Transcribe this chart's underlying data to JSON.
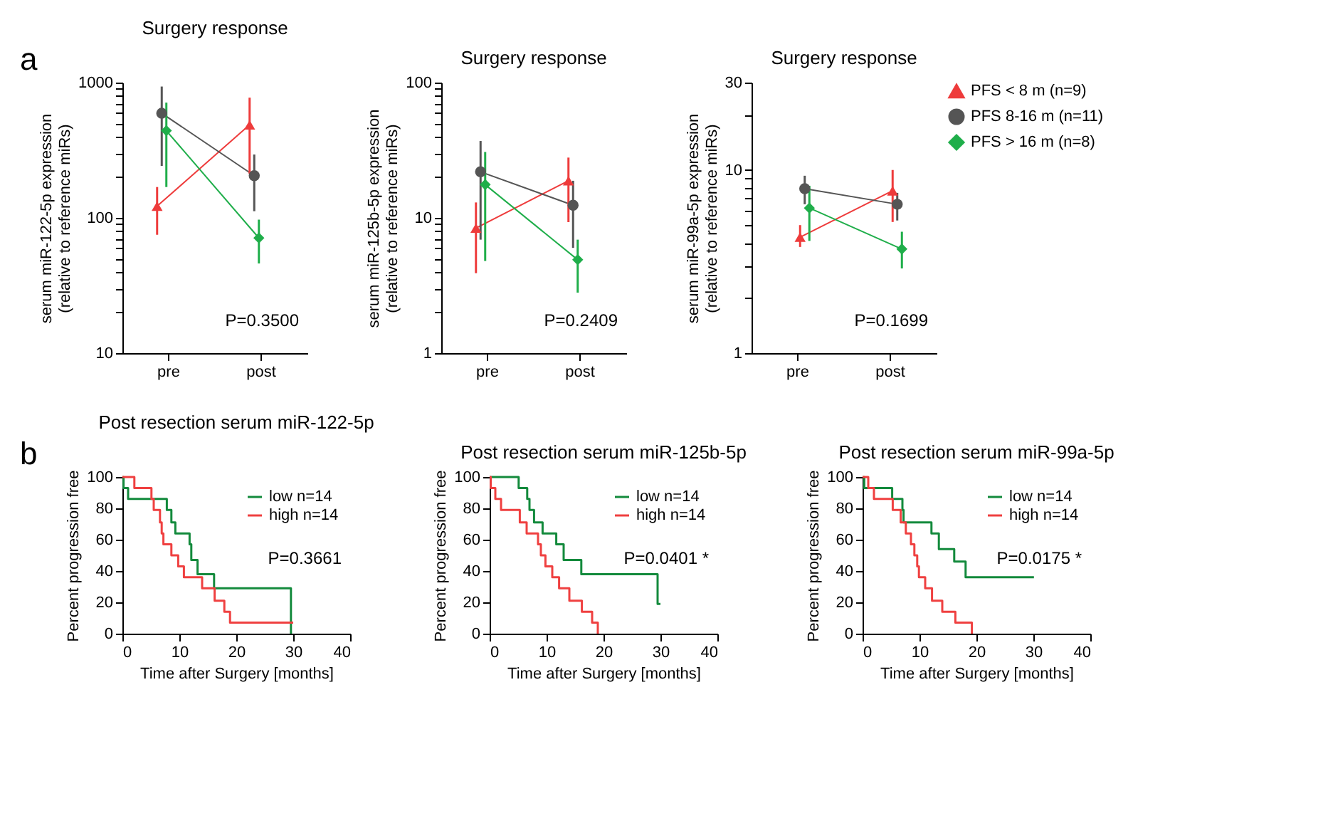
{
  "chart_data": [
    {
      "type": "line",
      "title": "Surgery response",
      "ylabel": "serum miR-122-5p expression\n(relative to reference miRs)",
      "categories": [
        "pre",
        "post"
      ],
      "log": "y",
      "ylim": [
        10,
        1000
      ],
      "yticks": [
        10,
        {
          "value": 20,
          "label": null
        },
        {
          "value": 30,
          "label": null
        },
        {
          "value": 40,
          "label": null
        },
        {
          "value": 50,
          "label": null
        },
        {
          "value": 60,
          "label": null
        },
        {
          "value": 70,
          "label": null
        },
        {
          "value": 80,
          "label": null
        },
        {
          "value": 90,
          "label": null
        },
        100,
        {
          "value": 200,
          "label": null
        },
        {
          "value": 300,
          "label": null
        },
        {
          "value": 400,
          "label": null
        },
        {
          "value": 500,
          "label": null
        },
        {
          "value": 600,
          "label": null
        },
        {
          "value": 700,
          "label": null
        },
        {
          "value": 800,
          "label": null
        },
        {
          "value": 900,
          "label": null
        },
        1000
      ],
      "annotations": [
        "a",
        "P=0.3500"
      ],
      "series": [
        {
          "color": "#ee3b3b",
          "marker": "triangle",
          "values": [
            122,
            487
          ],
          "errors": [
            [
              75,
              169
            ],
            [
              212,
              774
            ]
          ]
        },
        {
          "color": "#555555",
          "marker": "circle",
          "values": [
            593,
            205
          ],
          "errors": [
            [
              242,
              935
            ],
            [
              112,
              294
            ]
          ]
        },
        {
          "color": "#1fae4a",
          "marker": "diamond",
          "values": [
            441,
            71
          ],
          "errors": [
            [
              169,
              711
            ],
            [
              46,
              97
            ]
          ]
        }
      ]
    },
    {
      "type": "line",
      "title": "Surgery response",
      "ylabel": "serum miR-125b-5p expression\n(relative to reference miRs)",
      "categories": [
        "pre",
        "post"
      ],
      "log": "y",
      "ylim": [
        1,
        100
      ],
      "yticks": [
        1,
        {
          "value": 2,
          "label": null
        },
        {
          "value": 3,
          "label": null
        },
        {
          "value": 4,
          "label": null
        },
        {
          "value": 5,
          "label": null
        },
        {
          "value": 6,
          "label": null
        },
        {
          "value": 7,
          "label": null
        },
        {
          "value": 8,
          "label": null
        },
        {
          "value": 9,
          "label": null
        },
        10,
        {
          "value": 20,
          "label": null
        },
        {
          "value": 30,
          "label": null
        },
        {
          "value": 40,
          "label": null
        },
        {
          "value": 50,
          "label": null
        },
        {
          "value": 60,
          "label": null
        },
        {
          "value": 70,
          "label": null
        },
        {
          "value": 80,
          "label": null
        },
        {
          "value": 90,
          "label": null
        },
        100
      ],
      "annotations": [
        "P=0.2409"
      ],
      "series": [
        {
          "color": "#ee3b3b",
          "marker": "triangle",
          "values": [
            8.4,
            18.8
          ],
          "errors": [
            [
              3.9,
              13
            ],
            [
              9.3,
              27.9
            ]
          ]
        },
        {
          "color": "#555555",
          "marker": "circle",
          "values": [
            21.9,
            12.4
          ],
          "errors": [
            [
              6.9,
              37
            ],
            [
              6.0,
              18.8
            ]
          ]
        },
        {
          "color": "#1fae4a",
          "marker": "diamond",
          "values": [
            17.6,
            4.9
          ],
          "errors": [
            [
              4.8,
              30.7
            ],
            [
              2.8,
              6.9
            ]
          ]
        }
      ]
    },
    {
      "type": "line",
      "title": "Surgery response",
      "ylabel": "serum miR-99a-5p expression\n(relative to reference miRs)",
      "categories": [
        "pre",
        "post"
      ],
      "log": "y",
      "ylim": [
        1,
        30
      ],
      "yticks": [
        1,
        {
          "value": 2,
          "label": null
        },
        {
          "value": 3,
          "label": null
        },
        {
          "value": 4,
          "label": null
        },
        {
          "value": 5,
          "label": null
        },
        {
          "value": 6,
          "label": null
        },
        {
          "value": 7,
          "label": null
        },
        {
          "value": 8,
          "label": null
        },
        {
          "value": 9,
          "label": null
        },
        10,
        {
          "value": 20,
          "label": null
        },
        30
      ],
      "legend": "right",
      "annotations": [
        "P=0.1699"
      ],
      "series": [
        {
          "name": "PFS < 8 m (n=9)",
          "color": "#ee3b3b",
          "marker": "triangle",
          "values": [
            4.3,
            7.7
          ],
          "errors": [
            [
              3.8,
              5.0
            ],
            [
              5.2,
              10.0
            ]
          ]
        },
        {
          "name": "PFS 8-16 m (n=11)",
          "color": "#555555",
          "marker": "circle",
          "values": [
            7.9,
            6.5
          ],
          "errors": [
            [
              6.5,
              9.3
            ],
            [
              5.3,
              7.5
            ]
          ]
        },
        {
          "name": "PFS > 16 m (n=8)",
          "color": "#1fae4a",
          "marker": "diamond",
          "values": [
            6.2,
            3.7
          ],
          "errors": [
            [
              4.1,
              8.2
            ],
            [
              2.9,
              4.6
            ]
          ]
        }
      ]
    },
    {
      "type": "step",
      "title": "Post resection serum miR-122-5p",
      "xlabel": "Time after Surgery [months]",
      "ylabel": "Percent progression free",
      "xlim": [
        0,
        40
      ],
      "xticks": [
        0,
        10,
        20,
        30,
        40
      ],
      "ylim": [
        0,
        100
      ],
      "yticks": [
        0,
        20,
        40,
        60,
        80,
        100
      ],
      "legend": "top right",
      "annotations": [
        "b",
        "P=0.3661"
      ],
      "series": [
        {
          "name": "low n=14",
          "color": "#138a3c",
          "x": [
            0,
            0.2,
            1,
            7.8,
            8.6,
            9.3,
            11.8,
            12.1,
            13.2,
            16.1,
            29.6
          ],
          "values": [
            100,
            93,
            86,
            79,
            71,
            64,
            57,
            47,
            38,
            29,
            0
          ]
        },
        {
          "name": "high n=14",
          "color": "#ef4040",
          "x": [
            0,
            2.1,
            5.1,
            5.5,
            6.6,
            6.9,
            7.2,
            8.6,
            9.8,
            10.8,
            14,
            16.2,
            17.9,
            18.9,
            30
          ],
          "values": [
            100,
            93,
            86,
            79,
            71,
            64,
            57,
            50,
            43,
            36,
            29,
            21,
            14,
            7,
            7
          ]
        }
      ]
    },
    {
      "type": "step",
      "title": "Post resection serum miR-125b-5p",
      "xlabel": "Time after Surgery [months]",
      "ylabel": "Percent progression free",
      "xlim": [
        0,
        40
      ],
      "xticks": [
        0,
        10,
        20,
        30,
        40
      ],
      "ylim": [
        0,
        100
      ],
      "yticks": [
        0,
        20,
        40,
        60,
        80,
        100
      ],
      "legend": "top right",
      "annotations": [
        "P=0.0401 *"
      ],
      "series": [
        {
          "name": "low n=14",
          "color": "#138a3c",
          "x": [
            0,
            5.1,
            6.6,
            7,
            7.8,
            9.3,
            11.7,
            13,
            16.1,
            29.5,
            30
          ],
          "values": [
            100,
            93,
            86,
            79,
            71,
            64,
            57,
            47,
            38,
            19,
            19
          ]
        },
        {
          "name": "high n=14",
          "color": "#ef4040",
          "x": [
            0,
            0.2,
            1,
            2,
            5.3,
            6.5,
            8.5,
            9,
            9.8,
            11,
            12.2,
            14,
            16.2,
            18,
            19
          ],
          "values": [
            100,
            93,
            86,
            79,
            71,
            64,
            57,
            50,
            43,
            36,
            29,
            21,
            14,
            7,
            0
          ]
        }
      ]
    },
    {
      "type": "step",
      "title": "Post resection serum miR-99a-5p",
      "xlabel": "Time after Surgery [months]",
      "ylabel": "Percent progression free",
      "xlim": [
        0,
        40
      ],
      "xticks": [
        0,
        10,
        20,
        30,
        40
      ],
      "ylim": [
        0,
        100
      ],
      "yticks": [
        0,
        20,
        40,
        60,
        80,
        100
      ],
      "legend": "top right",
      "annotations": [
        "P=0.0175 *"
      ],
      "series": [
        {
          "name": "low n=14",
          "color": "#138a3c",
          "x": [
            0,
            0.3,
            5.2,
            7,
            7.2,
            12.1,
            13.4,
            16.1,
            18.1,
            30.1
          ],
          "values": [
            100,
            93,
            86,
            79,
            71,
            64,
            54,
            46,
            36,
            36
          ]
        },
        {
          "name": "high n=14",
          "color": "#ef4040",
          "x": [
            0,
            1,
            2,
            5.3,
            6.7,
            7.6,
            8.5,
            9.1,
            9.6,
            9.9,
            11,
            12.2,
            14,
            16.3,
            19.2
          ],
          "values": [
            100,
            93,
            86,
            79,
            71,
            64,
            57,
            50,
            43,
            36,
            29,
            21,
            14,
            7,
            0
          ]
        }
      ]
    }
  ]
}
